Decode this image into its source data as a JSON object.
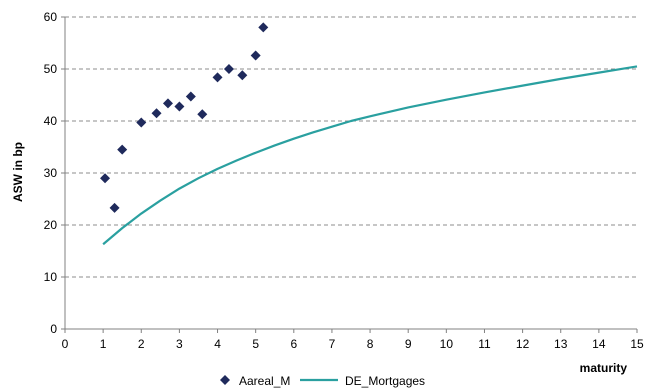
{
  "chart_data": {
    "type": "scatter",
    "xlabel": "maturity",
    "ylabel": "ASW in bp",
    "xlim": [
      0,
      15
    ],
    "ylim": [
      0,
      60
    ],
    "x_ticks": [
      0,
      1,
      2,
      3,
      4,
      5,
      6,
      7,
      8,
      9,
      10,
      11,
      12,
      13,
      14,
      15
    ],
    "y_ticks": [
      0,
      10,
      20,
      30,
      40,
      50,
      60
    ],
    "grid": "horizontal-dashed",
    "legend_position": "bottom",
    "series": [
      {
        "name": "Aareal_M",
        "kind": "scatter",
        "marker": "diamond",
        "color": "#1f2a5c",
        "points": [
          [
            1.05,
            29
          ],
          [
            1.3,
            23.3
          ],
          [
            1.5,
            34.5
          ],
          [
            2.0,
            39.7
          ],
          [
            2.4,
            41.5
          ],
          [
            2.7,
            43.4
          ],
          [
            3.0,
            42.8
          ],
          [
            3.3,
            44.7
          ],
          [
            3.6,
            41.3
          ],
          [
            4.0,
            48.4
          ],
          [
            4.3,
            50.0
          ],
          [
            4.65,
            48.8
          ],
          [
            5.0,
            52.6
          ],
          [
            5.2,
            58.0
          ]
        ]
      },
      {
        "name": "DE_Mortgages",
        "kind": "line",
        "color": "#2aa0a0",
        "points": [
          [
            1.0,
            16.3
          ],
          [
            1.5,
            19.4
          ],
          [
            2.0,
            22.2
          ],
          [
            2.5,
            24.7
          ],
          [
            3.0,
            27.0
          ],
          [
            3.5,
            29.0
          ],
          [
            4.0,
            30.8
          ],
          [
            4.5,
            32.4
          ],
          [
            5.0,
            33.9
          ],
          [
            5.5,
            35.3
          ],
          [
            6.0,
            36.6
          ],
          [
            6.5,
            37.8
          ],
          [
            7.0,
            38.9
          ],
          [
            7.5,
            40.0
          ],
          [
            8.0,
            40.9
          ],
          [
            9.0,
            42.6
          ],
          [
            10.0,
            44.1
          ],
          [
            11.0,
            45.5
          ],
          [
            12.0,
            46.8
          ],
          [
            13.0,
            48.1
          ],
          [
            14.0,
            49.3
          ],
          [
            15.0,
            50.5
          ]
        ]
      }
    ]
  }
}
